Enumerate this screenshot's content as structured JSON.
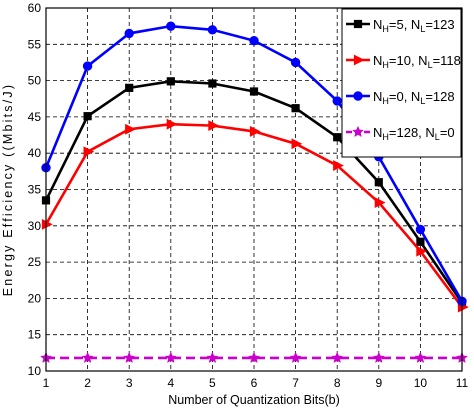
{
  "chart_data": {
    "type": "line",
    "title": "",
    "xlabel": "Number of Quantization Bits(b)",
    "ylabel": "Energy Efficiency ((Mbits/J)",
    "x": [
      1,
      2,
      3,
      4,
      5,
      6,
      7,
      8,
      9,
      10,
      11
    ],
    "xlim": [
      1,
      11
    ],
    "ylim": [
      10,
      60
    ],
    "xticks": [
      "1",
      "2",
      "3",
      "4",
      "5",
      "6",
      "7",
      "8",
      "9",
      "10",
      "11"
    ],
    "yticks": [
      "10",
      "15",
      "20",
      "25",
      "30",
      "35",
      "40",
      "45",
      "50",
      "55",
      "60"
    ],
    "grid": true,
    "legend_position": "top-right",
    "series": [
      {
        "name": "N_H=5, N_L=123",
        "legend": {
          "a": "N",
          "a_sub": "H",
          "b": "=5, N",
          "b_sub": "L",
          "c": "=123"
        },
        "color": "#000000",
        "marker": "square",
        "linestyle": "solid",
        "values": [
          33.5,
          45.1,
          49.0,
          49.9,
          49.6,
          48.5,
          46.2,
          42.2,
          36.0,
          27.8,
          19.4
        ]
      },
      {
        "name": "N_H=10, N_L=118",
        "legend": {
          "a": "N",
          "a_sub": "H",
          "b": "=10, N",
          "b_sub": "L",
          "c": "=118"
        },
        "color": "#ff0000",
        "marker": "triangle-right",
        "linestyle": "solid",
        "values": [
          30.2,
          40.2,
          43.3,
          44.0,
          43.8,
          43.0,
          41.3,
          38.3,
          33.2,
          26.5,
          18.8
        ]
      },
      {
        "name": "N_H=0, N_L=128",
        "legend": {
          "a": "N",
          "a_sub": "H",
          "b": "=0, N",
          "b_sub": "L",
          "c": "=128"
        },
        "color": "#0000ff",
        "marker": "circle",
        "linestyle": "solid",
        "values": [
          38.0,
          52.0,
          56.5,
          57.5,
          57.0,
          55.5,
          52.5,
          47.2,
          39.5,
          29.5,
          19.6
        ]
      },
      {
        "name": "N_H=128, N_L=0",
        "legend": {
          "a": "N",
          "a_sub": "H",
          "b": "=128, N",
          "b_sub": "L",
          "c": "=0"
        },
        "color": "#cc00cc",
        "marker": "star",
        "linestyle": "dashed",
        "values": [
          11.8,
          11.8,
          11.8,
          11.8,
          11.8,
          11.8,
          11.8,
          11.8,
          11.8,
          11.8,
          11.8
        ]
      }
    ]
  }
}
